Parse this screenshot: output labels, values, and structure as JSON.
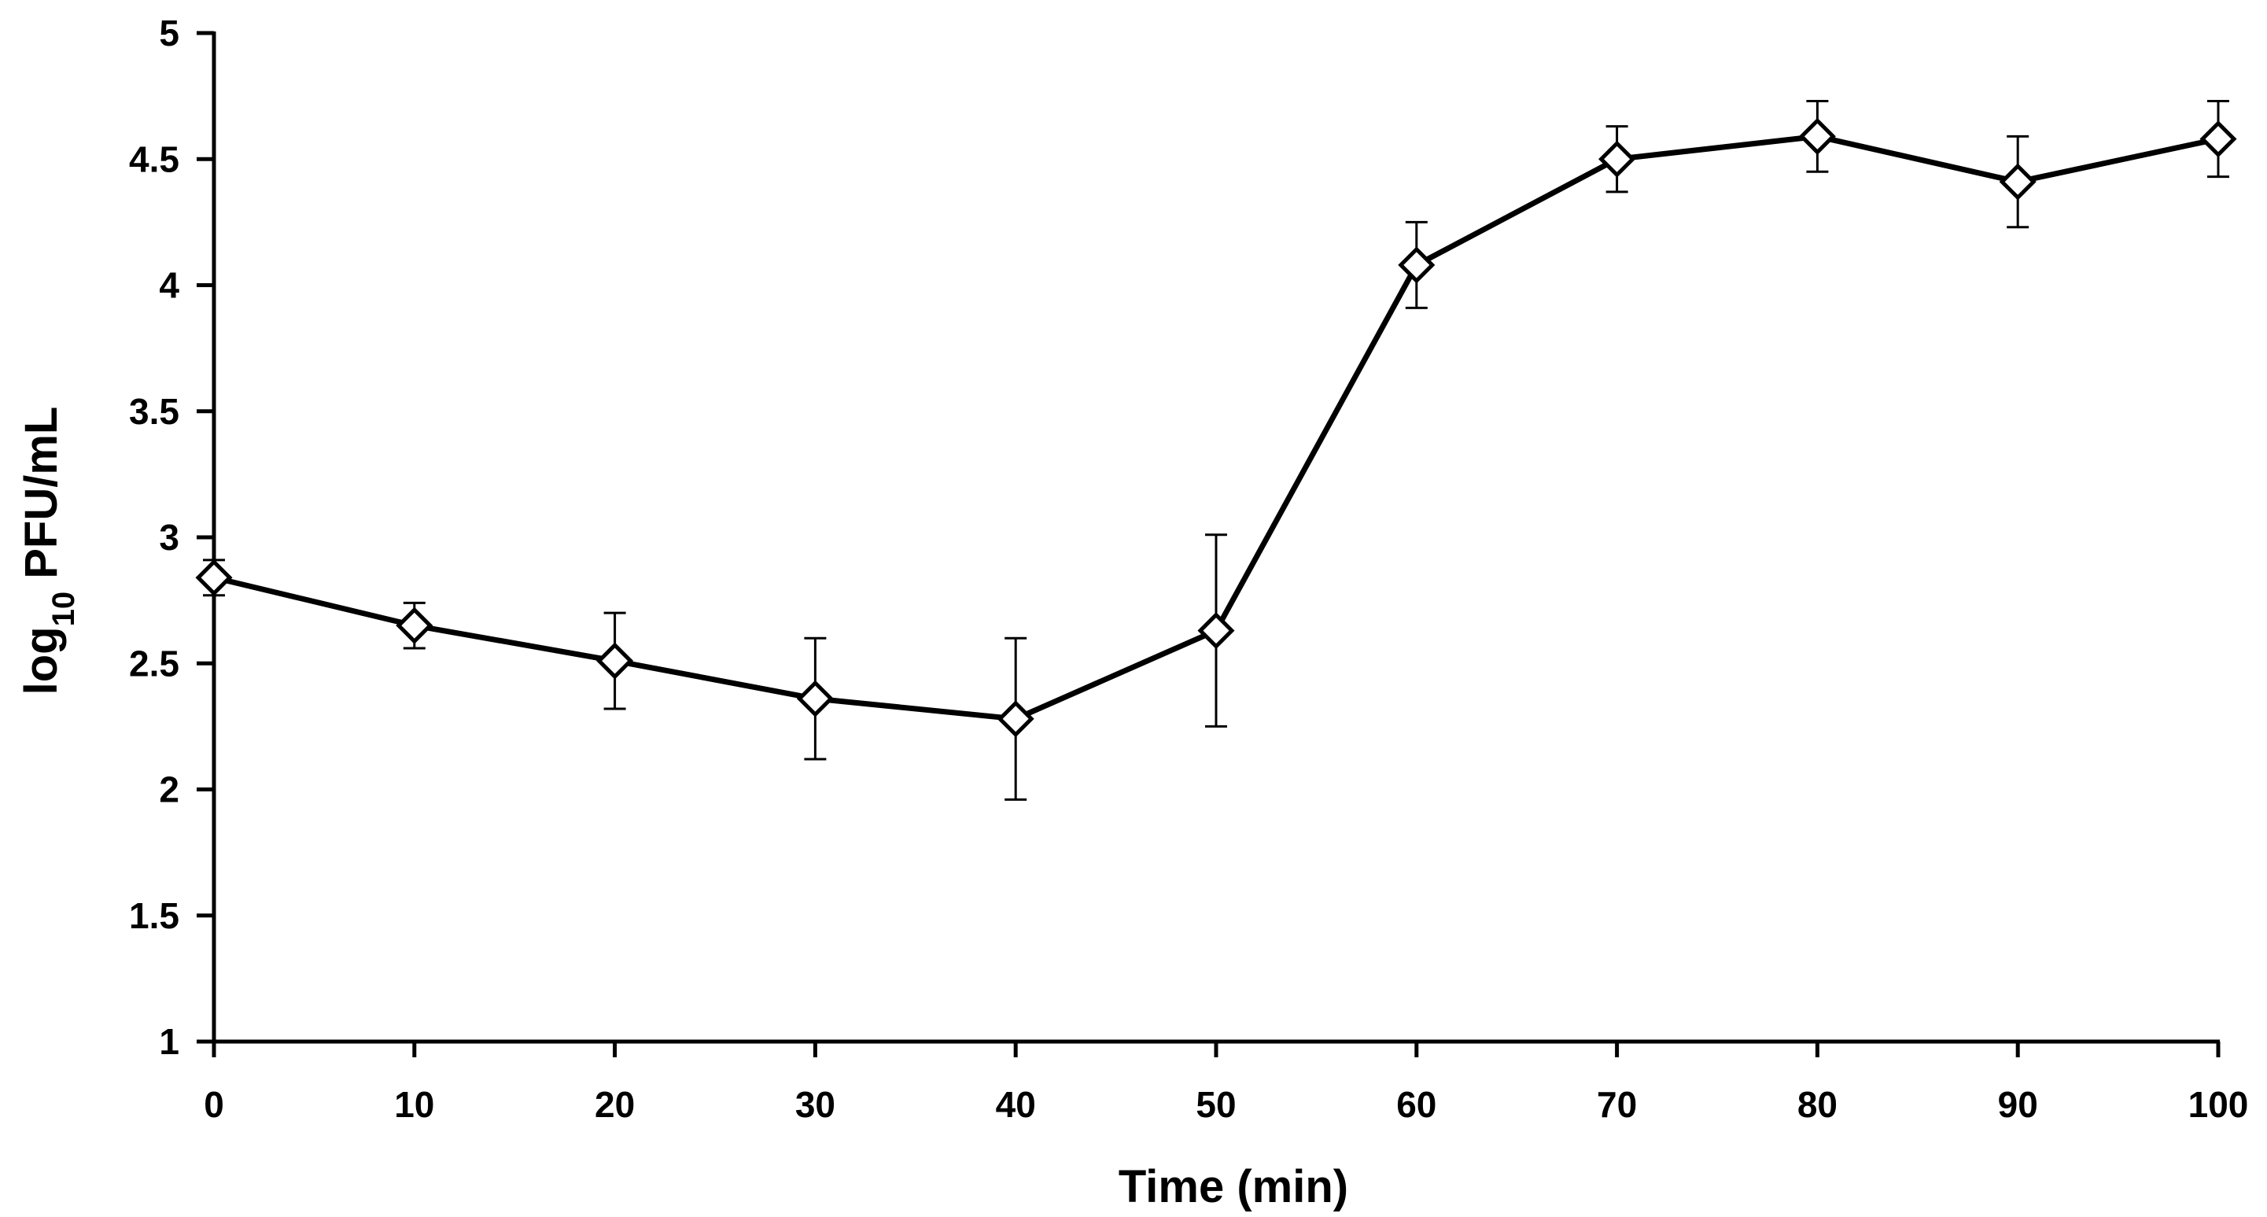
{
  "chart_data": {
    "type": "line",
    "title": "",
    "xlabel": "Time (min)",
    "ylabel": {
      "prefix": "log",
      "subscript": "10",
      "suffix": " PFU/mL"
    },
    "xlim": [
      0,
      100
    ],
    "ylim": [
      1,
      5
    ],
    "xticks": [
      "0",
      "10",
      "20",
      "30",
      "40",
      "50",
      "60",
      "70",
      "80",
      "90",
      "100"
    ],
    "yticks": [
      "1",
      "1.5",
      "2",
      "2.5",
      "3",
      "3.5",
      "4",
      "4.5",
      "5"
    ],
    "grid": false,
    "legend": "none",
    "marker": "open-diamond",
    "line_color": "#000000",
    "series": [
      {
        "name": "log10 PFU/mL",
        "x": [
          0,
          10,
          20,
          30,
          40,
          50,
          60,
          70,
          80,
          90,
          100
        ],
        "y": [
          2.84,
          2.65,
          2.51,
          2.36,
          2.28,
          2.63,
          4.08,
          4.5,
          4.59,
          4.41,
          4.58
        ],
        "error": [
          0.07,
          0.09,
          0.19,
          0.24,
          0.32,
          0.38,
          0.17,
          0.13,
          0.14,
          0.18,
          0.15
        ]
      }
    ]
  }
}
